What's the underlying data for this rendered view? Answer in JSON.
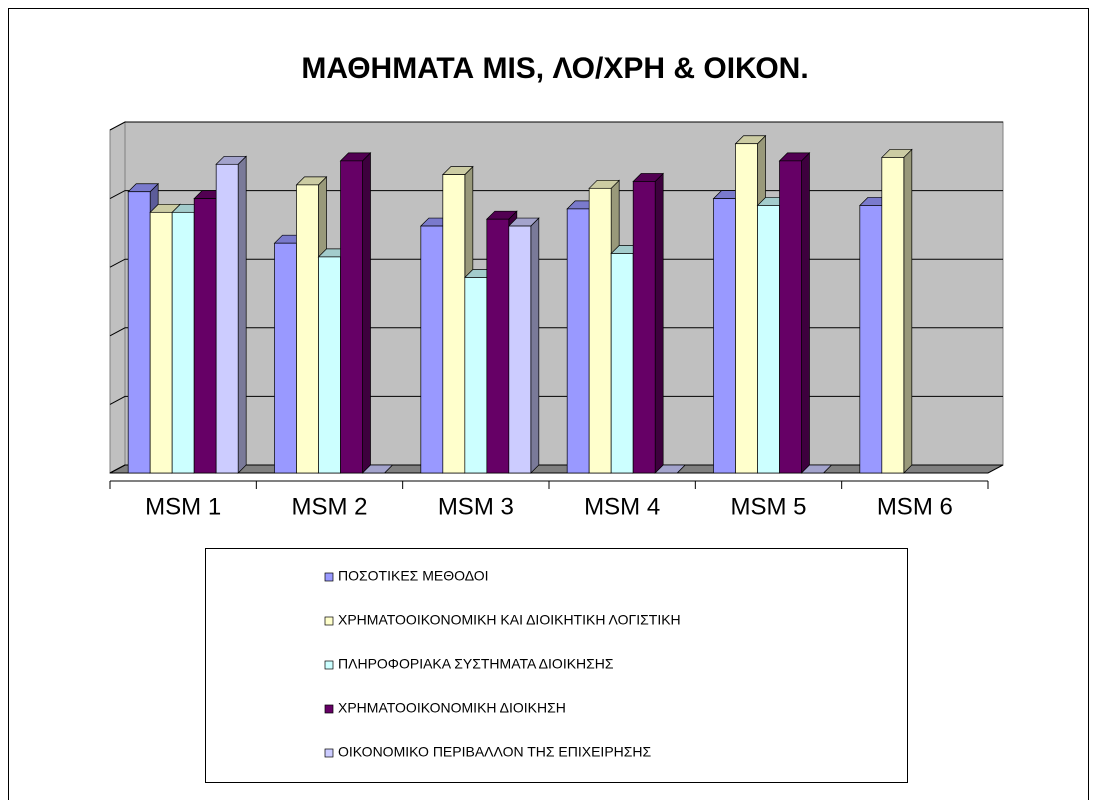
{
  "chart_data": {
    "type": "bar3d",
    "title": "ΜΑΘΗΜΑΤΑ MIS, ΛΟ/ΧΡΗ & ΟΙΚΟΝ.",
    "categories": [
      "MSM 1",
      "MSM 2",
      "MSM 3",
      "MSM 4",
      "MSM 5",
      "MSM 6"
    ],
    "series": [
      {
        "name": "ΠΟΣΟΤΙΚΕΣ ΜΕΘΟΔΟΙ",
        "color": "#9999ff",
        "values": [
          4.1,
          3.35,
          3.6,
          3.85,
          4.0,
          3.9
        ]
      },
      {
        "name": "ΧΡΗΜΑΤΟΟΙΚΟΝΟΜΙΚΗ ΚΑΙ ΔΙΟΙΚΗΤΙΚΗ ΛΟΓΙΣΤΙΚΗ",
        "color": "#ffffcc",
        "values": [
          3.8,
          4.2,
          4.35,
          4.15,
          4.8,
          4.6
        ]
      },
      {
        "name": "ΠΛΗΡΟΦΟΡΙΑΚΑ ΣΥΣΤΗΜΑΤΑ ΔΙΟΙΚΗΣΗΣ",
        "color": "#ccffff",
        "values": [
          3.8,
          3.15,
          2.85,
          3.2,
          3.9,
          null
        ]
      },
      {
        "name": "ΧΡΗΜΑΤΟΟΙΚΟΝΟΜΙΚΗ ΔΙΟΙΚΗΣΗ",
        "color": "#660066",
        "values": [
          4.0,
          4.55,
          3.7,
          4.25,
          4.55,
          null
        ]
      },
      {
        "name": "ΟΙΚΟΝΟΜΙΚΟ ΠΕΡΙΒΑΛΛΟΝ ΤΗΣ ΕΠΙΧΕΙΡΗΣΗΣ",
        "color": "#ccccff",
        "values": [
          4.5,
          0,
          3.6,
          0,
          0,
          null
        ]
      }
    ],
    "ylim": [
      0,
      5
    ],
    "yticks": [
      0,
      1,
      2,
      3,
      4,
      5
    ],
    "grid": true
  }
}
